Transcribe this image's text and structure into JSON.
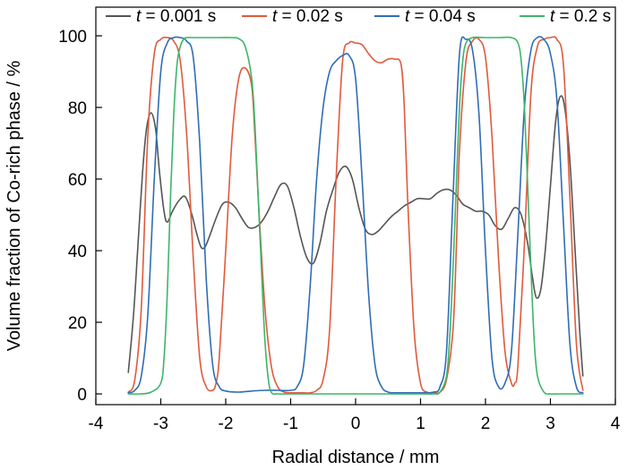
{
  "chart_data": {
    "type": "line",
    "title": "",
    "xlabel": "Radial distance / mm",
    "ylabel": "Volume fraction of Co-rich phase / %",
    "xlim": [
      -4,
      4
    ],
    "ylim": [
      -3,
      108
    ],
    "xticks": [
      -4,
      -3,
      -2,
      -1,
      0,
      1,
      2,
      3,
      4
    ],
    "yticks": [
      0,
      20,
      40,
      60,
      80,
      100
    ],
    "grid": false,
    "legend_position": "top",
    "series": [
      {
        "name_prefix": "t",
        "name_suffix": " = 0.001 s",
        "color": "#555555",
        "x": [
          -3.5,
          -3.42,
          -3.35,
          -3.28,
          -3.22,
          -3.15,
          -3.08,
          -3.02,
          -2.95,
          -2.9,
          -2.82,
          -2.72,
          -2.62,
          -2.52,
          -2.45,
          -2.38,
          -2.32,
          -2.25,
          -2.15,
          -2.05,
          -1.95,
          -1.85,
          -1.75,
          -1.65,
          -1.55,
          -1.45,
          -1.35,
          -1.25,
          -1.15,
          -1.05,
          -0.95,
          -0.85,
          -0.75,
          -0.65,
          -0.55,
          -0.45,
          -0.35,
          -0.25,
          -0.15,
          -0.05,
          0.05,
          0.15,
          0.25,
          0.35,
          0.45,
          0.55,
          0.65,
          0.75,
          0.85,
          0.95,
          1.05,
          1.15,
          1.25,
          1.35,
          1.45,
          1.55,
          1.65,
          1.75,
          1.85,
          1.95,
          2.05,
          2.15,
          2.25,
          2.35,
          2.45,
          2.55,
          2.65,
          2.72,
          2.78,
          2.85,
          2.92,
          3.0,
          3.08,
          3.15,
          3.22,
          3.3,
          3.38,
          3.45,
          3.5
        ],
        "values": [
          6,
          22,
          42,
          62,
          74,
          78.5,
          74,
          62,
          51,
          48,
          51,
          54,
          55,
          50,
          45,
          41,
          41,
          44,
          49,
          53,
          53.5,
          52,
          49,
          46.5,
          46.5,
          48,
          51,
          55,
          58.5,
          58,
          52,
          44,
          38,
          36.5,
          42,
          51,
          57,
          62,
          63.5,
          60,
          52,
          46,
          44.5,
          45.5,
          47.5,
          49.5,
          51,
          52.5,
          53.5,
          54.5,
          54.5,
          54.5,
          56,
          57,
          57,
          55.5,
          53,
          52,
          51,
          51,
          50,
          47,
          46,
          49,
          52,
          50,
          42,
          33,
          27,
          29,
          40,
          58,
          76,
          83,
          80,
          65,
          40,
          18,
          5
        ]
      },
      {
        "name_prefix": "t",
        "name_suffix": " = 0.02 s",
        "color": "#e05a3c",
        "x": [
          -3.5,
          -3.4,
          -3.3,
          -3.2,
          -3.1,
          -3.0,
          -2.9,
          -2.8,
          -2.7,
          -2.6,
          -2.5,
          -2.4,
          -2.3,
          -2.2,
          -2.15,
          -2.1,
          -2.0,
          -1.9,
          -1.8,
          -1.7,
          -1.6,
          -1.55,
          -1.5,
          -1.4,
          -1.3,
          -1.2,
          -1.1,
          -1.0,
          -0.9,
          -0.8,
          -0.7,
          -0.6,
          -0.5,
          -0.4,
          -0.3,
          -0.2,
          -0.1,
          0.0,
          0.1,
          0.2,
          0.3,
          0.4,
          0.5,
          0.6,
          0.7,
          0.75,
          0.8,
          0.9,
          1.0,
          1.1,
          1.2,
          1.3,
          1.4,
          1.5,
          1.55,
          1.6,
          1.7,
          1.8,
          1.9,
          2.0,
          2.1,
          2.2,
          2.3,
          2.4,
          2.45,
          2.5,
          2.6,
          2.7,
          2.8,
          2.9,
          3.0,
          3.1,
          3.2,
          3.3,
          3.4,
          3.5
        ],
        "values": [
          0.5,
          4,
          24,
          72,
          95,
          99,
          99.5,
          98.5,
          93,
          72,
          38,
          10,
          2,
          1,
          3,
          10,
          40,
          72,
          88,
          91,
          86,
          72,
          55,
          25,
          8,
          2,
          0.5,
          0.3,
          0.3,
          0.3,
          0.3,
          1,
          4,
          18,
          60,
          93,
          98,
          98,
          97.5,
          95,
          93,
          92.5,
          93.5,
          93.5,
          92,
          80,
          55,
          18,
          3,
          0.5,
          0.3,
          0.5,
          4,
          18,
          40,
          68,
          93,
          98.5,
          99,
          94,
          72,
          38,
          12,
          3,
          3,
          8,
          42,
          84,
          97,
          99,
          99.5,
          99,
          92,
          55,
          14,
          1
        ]
      },
      {
        "name_prefix": "t",
        "name_suffix": " = 0.04 s",
        "color": "#2f6db5",
        "x": [
          -3.5,
          -3.4,
          -3.3,
          -3.2,
          -3.1,
          -3.0,
          -2.9,
          -2.8,
          -2.7,
          -2.6,
          -2.5,
          -2.4,
          -2.3,
          -2.2,
          -2.1,
          -2.0,
          -1.8,
          -1.6,
          -1.4,
          -1.2,
          -1.0,
          -0.9,
          -0.8,
          -0.7,
          -0.6,
          -0.5,
          -0.4,
          -0.3,
          -0.2,
          -0.1,
          0.0,
          0.1,
          0.2,
          0.3,
          0.4,
          0.5,
          0.6,
          0.8,
          1.0,
          1.2,
          1.3,
          1.4,
          1.5,
          1.6,
          1.7,
          1.8,
          1.9,
          2.0,
          2.1,
          2.2,
          2.3,
          2.4,
          2.5,
          2.6,
          2.7,
          2.8,
          2.9,
          3.0,
          3.1,
          3.2,
          3.3,
          3.4,
          3.5
        ],
        "values": [
          0.3,
          1,
          5,
          22,
          60,
          90,
          98,
          99.5,
          99.5,
          98.5,
          94,
          70,
          32,
          8,
          2,
          0.8,
          0.5,
          0.8,
          1,
          1,
          1,
          2,
          8,
          30,
          60,
          80,
          90,
          93,
          94.5,
          94.5,
          88,
          60,
          28,
          8,
          2,
          0.5,
          0.3,
          0.3,
          0.3,
          0.5,
          2,
          12,
          55,
          95,
          99,
          96,
          78,
          40,
          10,
          2,
          3,
          12,
          45,
          80,
          96,
          99.5,
          99,
          95,
          82,
          48,
          14,
          2,
          0.3
        ]
      },
      {
        "name_prefix": "t",
        "name_suffix": " = 0.2 s",
        "color": "#3db56a",
        "x": [
          -3.5,
          -3.3,
          -3.15,
          -3.0,
          -2.95,
          -2.9,
          -2.85,
          -2.8,
          -2.75,
          -2.7,
          -2.65,
          -2.6,
          -2.5,
          -2.3,
          -2.1,
          -1.9,
          -1.8,
          -1.7,
          -1.6,
          -1.55,
          -1.5,
          -1.45,
          -1.4,
          -1.35,
          -1.3,
          -1.2,
          -1.0,
          -0.5,
          0.0,
          0.5,
          1.0,
          1.2,
          1.3,
          1.4,
          1.45,
          1.5,
          1.55,
          1.6,
          1.65,
          1.7,
          1.8,
          2.0,
          2.2,
          2.4,
          2.5,
          2.55,
          2.6,
          2.65,
          2.7,
          2.75,
          2.8,
          2.9,
          3.0,
          3.1,
          3.2,
          3.3,
          3.5
        ],
        "values": [
          0,
          0,
          0.5,
          3,
          10,
          28,
          55,
          78,
          92,
          97,
          99,
          99.5,
          99.5,
          99.5,
          99.5,
          99.5,
          99.2,
          97,
          88,
          75,
          55,
          35,
          16,
          5,
          0.5,
          0,
          0,
          0,
          0,
          0,
          0,
          0,
          0.5,
          5,
          16,
          35,
          58,
          80,
          93,
          98,
          99.5,
          99.5,
          99.5,
          99.5,
          98,
          93,
          80,
          58,
          35,
          15,
          5,
          0.5,
          0,
          0,
          0,
          0,
          0
        ]
      }
    ]
  }
}
